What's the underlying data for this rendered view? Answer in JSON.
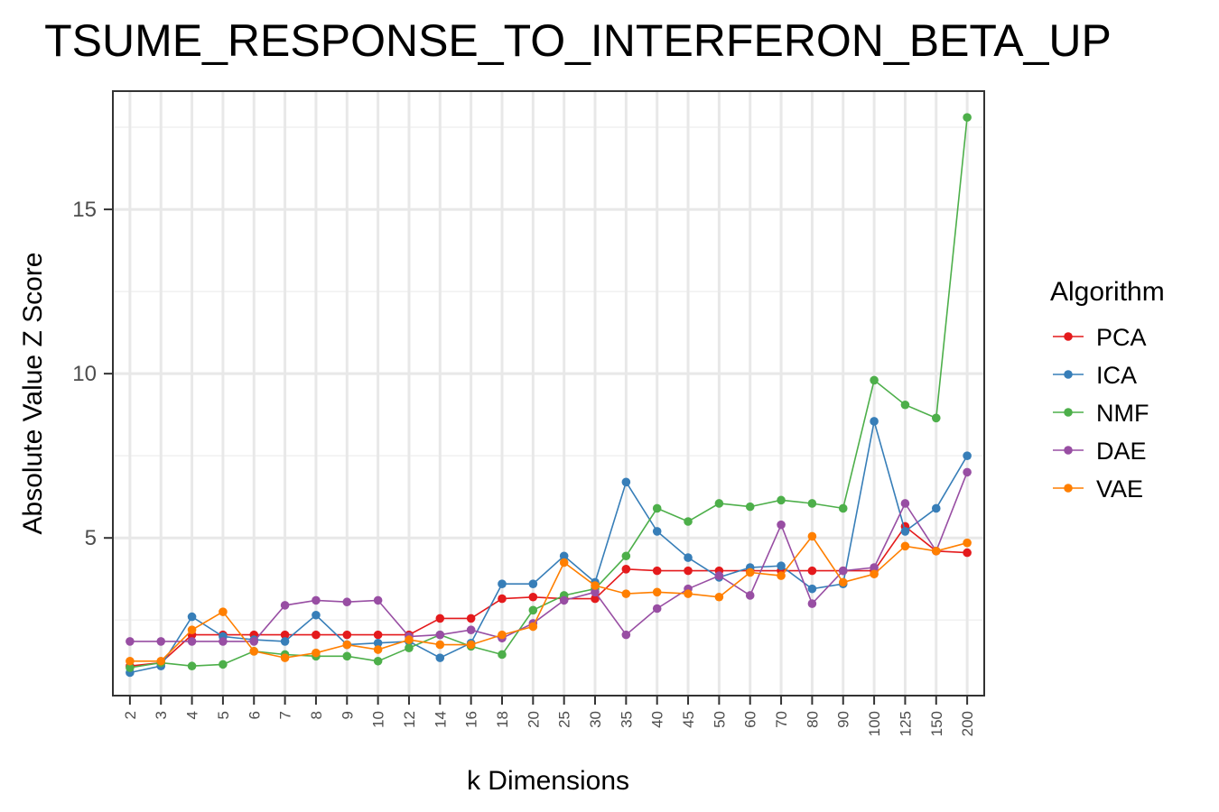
{
  "chart_data": {
    "type": "line",
    "title": "TSUME_RESPONSE_TO_INTERFERON_BETA_UP",
    "xlabel": "k Dimensions",
    "ylabel": "Absolute Value Z Score",
    "categories": [
      "2",
      "3",
      "4",
      "5",
      "6",
      "7",
      "8",
      "9",
      "10",
      "12",
      "14",
      "16",
      "18",
      "20",
      "25",
      "30",
      "35",
      "40",
      "45",
      "50",
      "60",
      "70",
      "80",
      "90",
      "100",
      "125",
      "150",
      "200"
    ],
    "yticks": [
      5,
      10,
      15
    ],
    "ylim": [
      0.2,
      18.6
    ],
    "grid": true,
    "legend": {
      "title": "Algorithm",
      "position": "right"
    },
    "series": [
      {
        "name": "PCA",
        "color": "#e41a1c",
        "values": [
          1.1,
          1.2,
          2.05,
          2.05,
          2.05,
          2.05,
          2.05,
          2.05,
          2.05,
          2.05,
          2.55,
          2.55,
          3.15,
          3.2,
          3.15,
          3.15,
          4.05,
          4.0,
          4.0,
          4.0,
          4.0,
          4.0,
          4.0,
          4.0,
          4.0,
          5.35,
          4.6,
          4.55
        ]
      },
      {
        "name": "ICA",
        "color": "#377eb8",
        "values": [
          0.9,
          1.1,
          2.6,
          2.0,
          1.9,
          1.85,
          2.65,
          1.75,
          1.8,
          1.85,
          1.35,
          1.8,
          3.6,
          3.6,
          4.45,
          3.65,
          6.7,
          5.2,
          4.4,
          3.8,
          4.1,
          4.15,
          3.45,
          3.6,
          8.55,
          5.2,
          5.9,
          7.5
        ]
      },
      {
        "name": "NMF",
        "color": "#4daf4a",
        "values": [
          1.05,
          1.2,
          1.1,
          1.15,
          1.55,
          1.45,
          1.4,
          1.4,
          1.25,
          1.65,
          2.05,
          1.7,
          1.45,
          2.8,
          3.25,
          3.45,
          4.45,
          5.9,
          5.5,
          6.05,
          5.95,
          6.15,
          6.05,
          5.9,
          9.8,
          9.05,
          8.65,
          17.8
        ]
      },
      {
        "name": "DAE",
        "color": "#984ea3",
        "values": [
          1.85,
          1.85,
          1.85,
          1.85,
          1.85,
          2.95,
          3.1,
          3.05,
          3.1,
          2.0,
          2.05,
          2.2,
          1.95,
          2.4,
          3.1,
          3.35,
          2.05,
          2.85,
          3.45,
          3.85,
          3.25,
          5.4,
          3.0,
          4.0,
          4.1,
          6.05,
          4.6,
          7.0
        ]
      },
      {
        "name": "VAE",
        "color": "#ff7f00",
        "values": [
          1.25,
          1.25,
          2.2,
          2.75,
          1.55,
          1.35,
          1.5,
          1.75,
          1.6,
          1.9,
          1.75,
          1.75,
          2.05,
          2.3,
          4.25,
          3.55,
          3.3,
          3.35,
          3.3,
          3.2,
          3.95,
          3.85,
          5.05,
          3.65,
          3.9,
          4.75,
          4.6,
          4.85
        ]
      }
    ]
  }
}
